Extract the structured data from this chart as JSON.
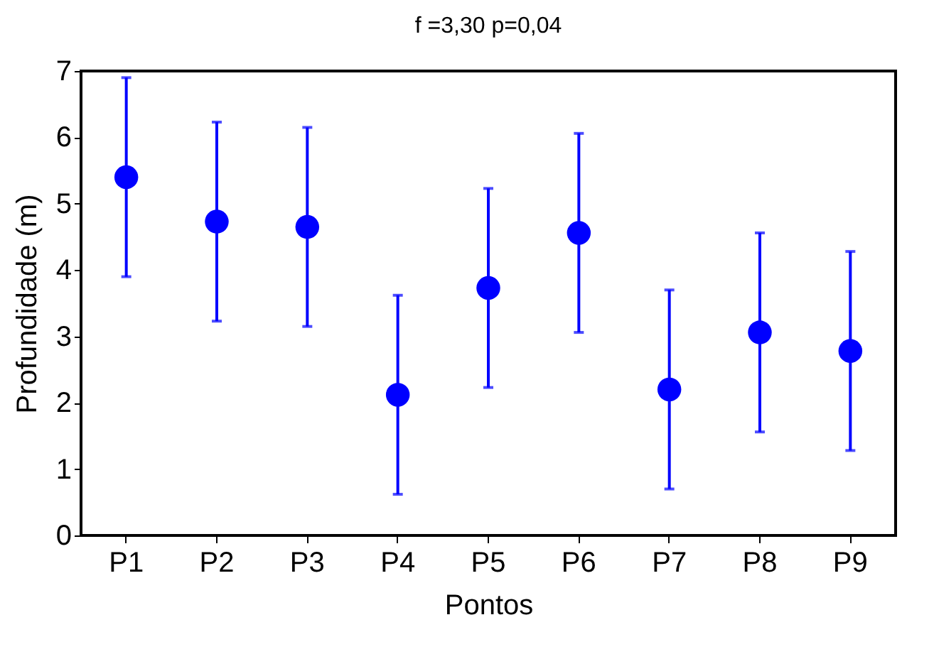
{
  "chart_data": {
    "type": "scatter",
    "title": "f =3,30 p=0,04",
    "xlabel": "Pontos",
    "ylabel": "Profundidade (m)",
    "categories": [
      "P1",
      "P2",
      "P3",
      "P4",
      "P5",
      "P6",
      "P7",
      "P8",
      "P9"
    ],
    "values": [
      5.4,
      4.73,
      4.65,
      2.12,
      3.73,
      4.56,
      2.2,
      3.06,
      2.78
    ],
    "errors": [
      1.5,
      1.5,
      1.5,
      1.5,
      1.5,
      1.5,
      1.5,
      1.5,
      1.5
    ],
    "color": "#0000ff",
    "marker": "circle",
    "ylim": [
      0,
      7
    ],
    "yticks": [
      0,
      1,
      2,
      3,
      4,
      5,
      6,
      7
    ],
    "grid": false
  }
}
